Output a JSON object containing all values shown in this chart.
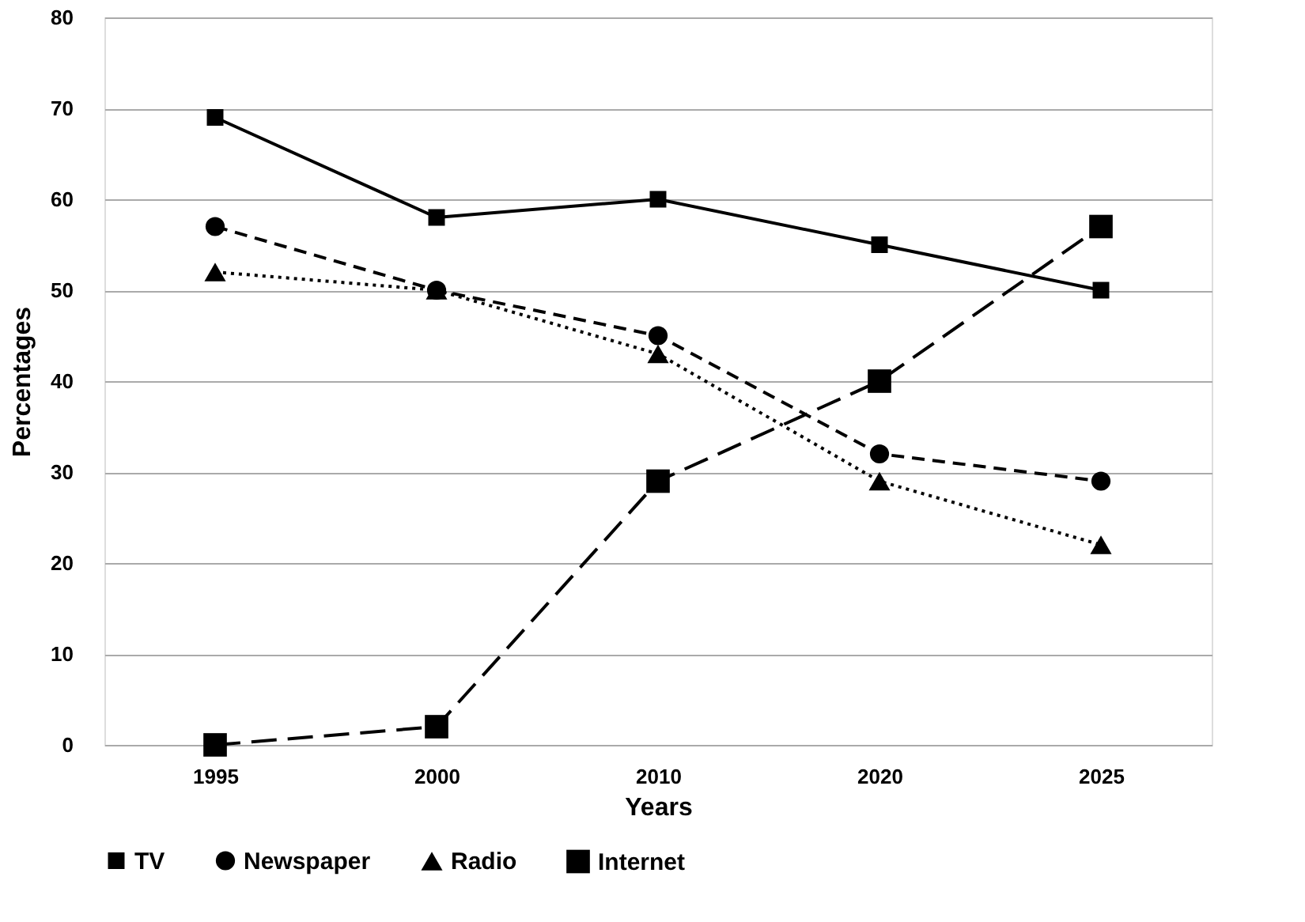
{
  "chart_data": {
    "type": "line",
    "xlabel": "Years",
    "ylabel": "Percentages",
    "categories": [
      "1995",
      "2000",
      "2010",
      "2020",
      "2025"
    ],
    "series": [
      {
        "name": "TV",
        "color": "#000000",
        "marker": "square",
        "line_style": "solid",
        "values": [
          69,
          58,
          60,
          55,
          50
        ]
      },
      {
        "name": "Newspaper",
        "color": "#000000",
        "marker": "circle",
        "line_style": "dashed",
        "values": [
          57,
          50,
          45,
          32,
          29
        ]
      },
      {
        "name": "Radio",
        "color": "#000000",
        "marker": "triangle",
        "line_style": "dotted",
        "values": [
          52,
          50,
          43,
          29,
          22
        ]
      },
      {
        "name": "Internet",
        "color": "#000000",
        "marker": "square",
        "line_style": "dashed",
        "values": [
          0,
          2,
          29,
          40,
          57
        ]
      }
    ],
    "ylim": [
      0,
      80
    ],
    "yticks": [
      0,
      10,
      20,
      30,
      40,
      50,
      60,
      70,
      80
    ],
    "grid": "y",
    "legend": "bottom"
  }
}
